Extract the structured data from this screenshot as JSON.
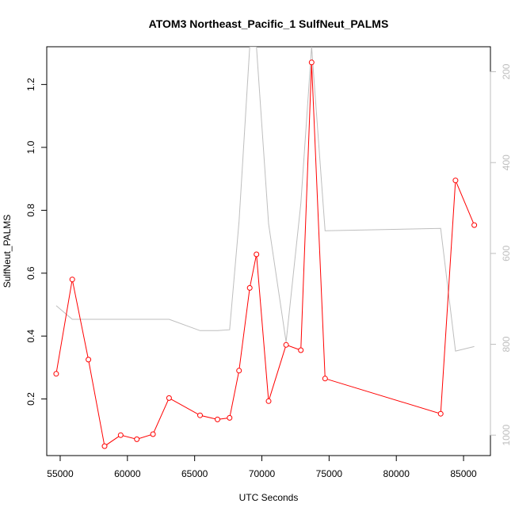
{
  "chart_data": {
    "type": "line",
    "title": "ATOM3 Northeast_Pacific_1 SulfNeut_PALMS",
    "xlabel": "UTC Seconds",
    "ylabel": "SulfNeut_PALMS",
    "xlim": [
      54000,
      87000
    ],
    "ylim": [
      0.02,
      1.32
    ],
    "x_ticks": [
      55000,
      60000,
      65000,
      70000,
      75000,
      80000,
      85000
    ],
    "y_ticks": [
      0.2,
      0.4,
      0.6,
      0.8,
      1.0,
      1.2
    ],
    "y_tick_labels": [
      "0.2",
      "0.4",
      "0.6",
      "0.8",
      "1.0",
      "1.2"
    ],
    "y2lim": [
      1045,
      145
    ],
    "y2_ticks": [
      200,
      400,
      600,
      800,
      1000
    ],
    "grid": false,
    "series": [
      {
        "color": "#ff0000",
        "axis": "left",
        "marker": "open-circle",
        "x": [
          54700,
          55900,
          57100,
          58300,
          59500,
          60700,
          61900,
          63100,
          65400,
          66700,
          67600,
          68300,
          69100,
          69600,
          70500,
          71800,
          72900,
          73700,
          74700,
          83300,
          84400,
          85800
        ],
        "values": [
          0.28,
          0.58,
          0.325,
          0.05,
          0.085,
          0.072,
          0.088,
          0.203,
          0.148,
          0.135,
          0.14,
          0.29,
          0.553,
          0.66,
          0.193,
          0.372,
          0.355,
          1.27,
          0.265,
          0.153,
          0.895,
          0.753
        ]
      },
      {
        "color": "#bebebe",
        "axis": "right",
        "marker": "none",
        "x": [
          54700,
          55900,
          57100,
          58300,
          59500,
          60700,
          61900,
          63100,
          65400,
          66700,
          67600,
          68300,
          69100,
          69600,
          70500,
          71800,
          72900,
          73700,
          74700,
          83300,
          84400,
          85800
        ],
        "values": [
          715,
          745,
          745,
          745,
          745,
          745,
          745,
          745,
          770,
          770,
          768,
          530,
          145,
          145,
          535,
          795,
          490,
          145,
          550,
          545,
          815,
          805
        ]
      }
    ]
  }
}
